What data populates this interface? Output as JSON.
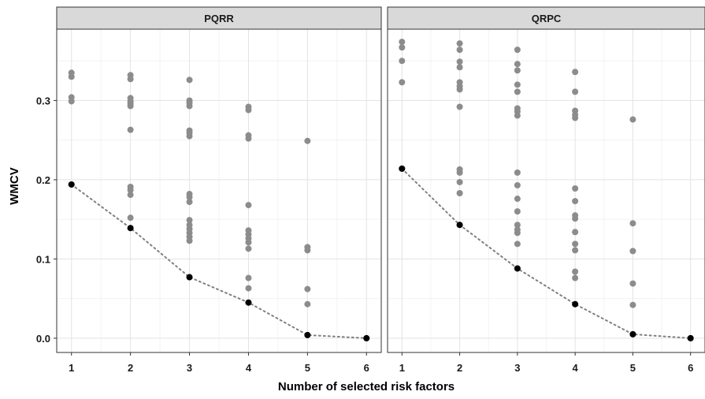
{
  "chart_data": {
    "type": "scatter",
    "xlabel": "Number of selected risk factors",
    "ylabel": "WMCV",
    "xlim": [
      0.75,
      6.25
    ],
    "ylim": [
      -0.018,
      0.39
    ],
    "x_ticks": [
      1,
      2,
      3,
      4,
      5,
      6
    ],
    "y_ticks": [
      0.0,
      0.1,
      0.2,
      0.3
    ],
    "y_tick_labels": [
      "0.0",
      "0.1",
      "0.2",
      "0.3"
    ],
    "grid": true,
    "colors": {
      "all_models": "#8c8c8c",
      "best_model": "#000000",
      "line": "#808080",
      "strip": "#d9d9d9"
    },
    "panels": [
      {
        "strip": "PQRR",
        "all_models": [
          {
            "x": 1,
            "y": [
              0.335,
              0.33,
              0.304,
              0.299,
              0.194
            ]
          },
          {
            "x": 2,
            "y": [
              0.332,
              0.327,
              0.303,
              0.299,
              0.296,
              0.293,
              0.263,
              0.191,
              0.187,
              0.181,
              0.152,
              0.139
            ]
          },
          {
            "x": 3,
            "y": [
              0.326,
              0.3,
              0.297,
              0.293,
              0.262,
              0.259,
              0.255,
              0.182,
              0.178,
              0.172,
              0.149,
              0.143,
              0.138,
              0.133,
              0.128,
              0.123,
              0.077
            ]
          },
          {
            "x": 4,
            "y": [
              0.292,
              0.288,
              0.256,
              0.252,
              0.168,
              0.136,
              0.131,
              0.126,
              0.121,
              0.113,
              0.076,
              0.063,
              0.045
            ]
          },
          {
            "x": 5,
            "y": [
              0.249,
              0.115,
              0.111,
              0.062,
              0.043,
              0.004
            ]
          },
          {
            "x": 6,
            "y": [
              0.0
            ]
          }
        ],
        "best_model": {
          "x": [
            1,
            2,
            3,
            4,
            5,
            6
          ],
          "y": [
            0.194,
            0.139,
            0.077,
            0.045,
            0.004,
            0.0
          ]
        }
      },
      {
        "strip": "QRPC",
        "all_models": [
          {
            "x": 1,
            "y": [
              0.374,
              0.367,
              0.35,
              0.323,
              0.214
            ]
          },
          {
            "x": 2,
            "y": [
              0.372,
              0.364,
              0.349,
              0.342,
              0.323,
              0.318,
              0.314,
              0.292,
              0.213,
              0.209,
              0.197,
              0.183,
              0.143
            ]
          },
          {
            "x": 3,
            "y": [
              0.364,
              0.346,
              0.338,
              0.32,
              0.311,
              0.29,
              0.286,
              0.281,
              0.209,
              0.193,
              0.176,
              0.16,
              0.143,
              0.137,
              0.133,
              0.119,
              0.088
            ]
          },
          {
            "x": 4,
            "y": [
              0.336,
              0.311,
              0.287,
              0.282,
              0.278,
              0.189,
              0.173,
              0.155,
              0.151,
              0.134,
              0.119,
              0.111,
              0.084,
              0.076,
              0.043
            ]
          },
          {
            "x": 5,
            "y": [
              0.276,
              0.145,
              0.11,
              0.069,
              0.042,
              0.005
            ]
          },
          {
            "x": 6,
            "y": [
              0.0
            ]
          }
        ],
        "best_model": {
          "x": [
            1,
            2,
            3,
            4,
            5,
            6
          ],
          "y": [
            0.214,
            0.143,
            0.088,
            0.043,
            0.005,
            0.0
          ]
        }
      }
    ]
  }
}
